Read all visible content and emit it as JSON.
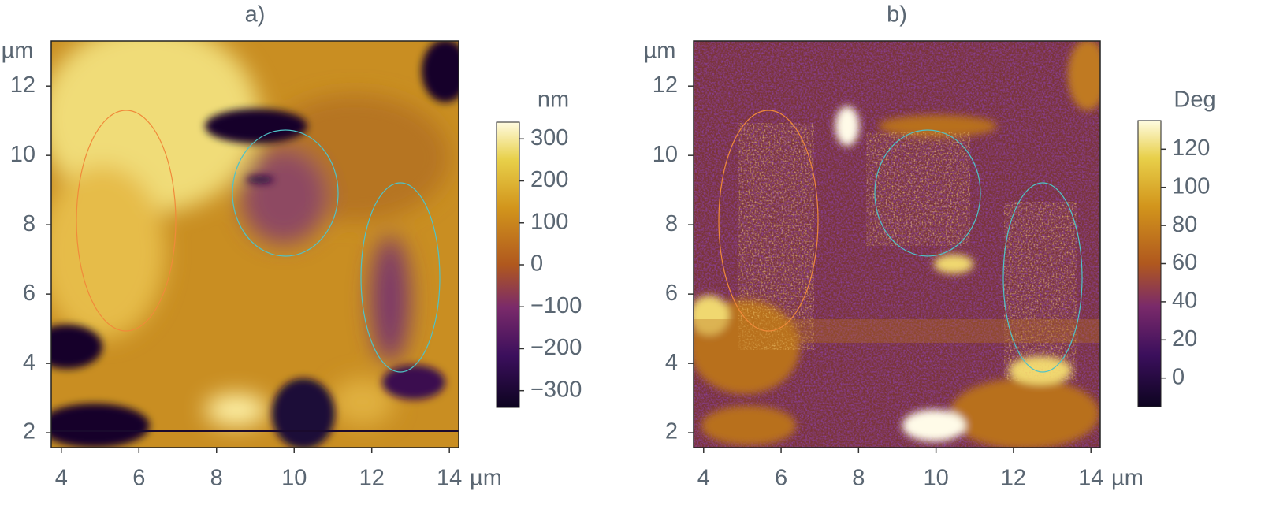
{
  "chart_data": [
    {
      "type": "image",
      "title": "a)",
      "xunit": "µm",
      "yunit": "µm",
      "xlim": [
        3.74,
        14.24
      ],
      "xticks": [
        4,
        6,
        8,
        10,
        12,
        14
      ],
      "ylim": [
        1.57,
        13.3
      ],
      "yticks": [
        2,
        4,
        6,
        8,
        10,
        12
      ],
      "colorbar_label": "nm",
      "clim": [
        -340,
        340
      ],
      "cticks": [
        300,
        200,
        100,
        0,
        {
          "value": -100,
          "label": "−100"
        },
        {
          "value": -200,
          "label": "−200"
        },
        {
          "value": -300,
          "label": "−300"
        }
      ]
    },
    {
      "type": "image",
      "title": "b)",
      "xunit": "µm",
      "yunit": "µm",
      "xlim": [
        3.74,
        14.24
      ],
      "xticks": [
        4,
        6,
        8,
        10,
        12,
        14
      ],
      "ylim": [
        1.57,
        13.3
      ],
      "yticks": [
        2,
        4,
        6,
        8,
        10,
        12
      ],
      "colorbar_label": "Deg",
      "clim": [
        -15,
        135
      ],
      "cticks": [
        120,
        100,
        80,
        60,
        40,
        20,
        0
      ]
    }
  ]
}
